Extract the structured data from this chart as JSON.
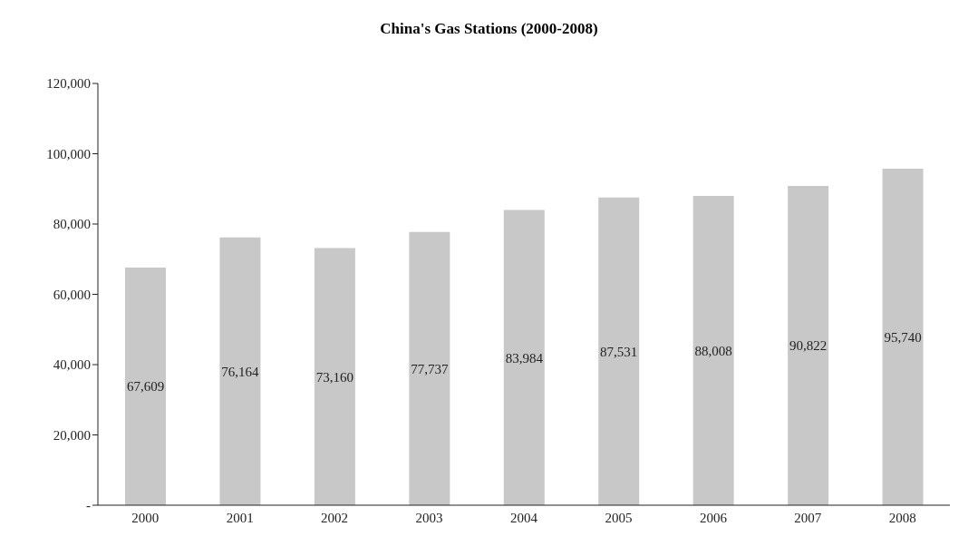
{
  "chart_data": {
    "type": "bar",
    "title": "China's Gas Stations (2000-2008)",
    "categories": [
      "2000",
      "2001",
      "2002",
      "2003",
      "2004",
      "2005",
      "2006",
      "2007",
      "2008"
    ],
    "values": [
      67609,
      76164,
      73160,
      77737,
      83984,
      87531,
      88008,
      90822,
      95740
    ],
    "value_labels": [
      "67,609",
      "76,164",
      "73,160",
      "77,737",
      "83,984",
      "87,531",
      "88,008",
      "90,822",
      "95,740"
    ],
    "color": "#c8c8c8",
    "ylim": [
      0,
      120000
    ],
    "yticks": [
      {
        "value": 0,
        "label": "-"
      },
      {
        "value": 20000,
        "label": "20,000"
      },
      {
        "value": 40000,
        "label": "40,000"
      },
      {
        "value": 60000,
        "label": "60,000"
      },
      {
        "value": 80000,
        "label": "80,000"
      },
      {
        "value": 100000,
        "label": "100,000"
      },
      {
        "value": 120000,
        "label": "120,000"
      }
    ],
    "grid": false,
    "legend": false
  }
}
